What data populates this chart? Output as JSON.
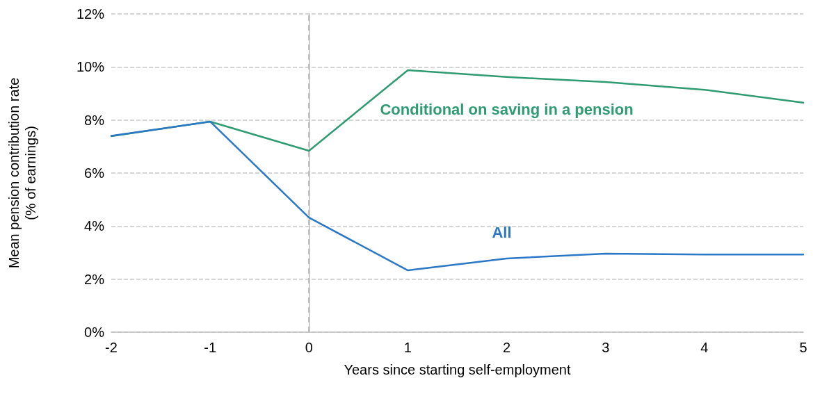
{
  "chart_data": {
    "type": "line",
    "xlabel": "Years since starting self-employment",
    "ylabel": "Mean pension contribution rate\n(% of earnings)",
    "x": [
      -2,
      -1,
      0,
      1,
      2,
      3,
      4,
      5
    ],
    "series": [
      {
        "name": "Conditional on saving in a pension",
        "color": "#2e9b72",
        "values": [
          7.39,
          7.94,
          6.84,
          9.88,
          9.62,
          9.43,
          9.14,
          8.65
        ]
      },
      {
        "name": "All",
        "color": "#2a78c6",
        "values": [
          7.4,
          7.94,
          4.32,
          2.33,
          2.78,
          2.96,
          2.93,
          2.93
        ]
      }
    ],
    "xlim": [
      -2,
      5
    ],
    "xticks": [
      -2,
      -1,
      0,
      1,
      2,
      3,
      4,
      5
    ],
    "ylim": [
      0,
      12
    ],
    "yticks": [
      {
        "value": 0,
        "label": "0%"
      },
      {
        "value": 2,
        "label": "2%"
      },
      {
        "value": 4,
        "label": "4%"
      },
      {
        "value": 6,
        "label": "6%"
      },
      {
        "value": 8,
        "label": "8%"
      },
      {
        "value": 10,
        "label": "10%"
      },
      {
        "value": 12,
        "label": "12%"
      }
    ],
    "ref_lines": [
      {
        "axis": "x",
        "value": 0,
        "color": "#bfbfbf",
        "line_style": "dashed"
      }
    ],
    "grid": "y",
    "legend": false,
    "marker": "none",
    "line_style": "solid"
  }
}
